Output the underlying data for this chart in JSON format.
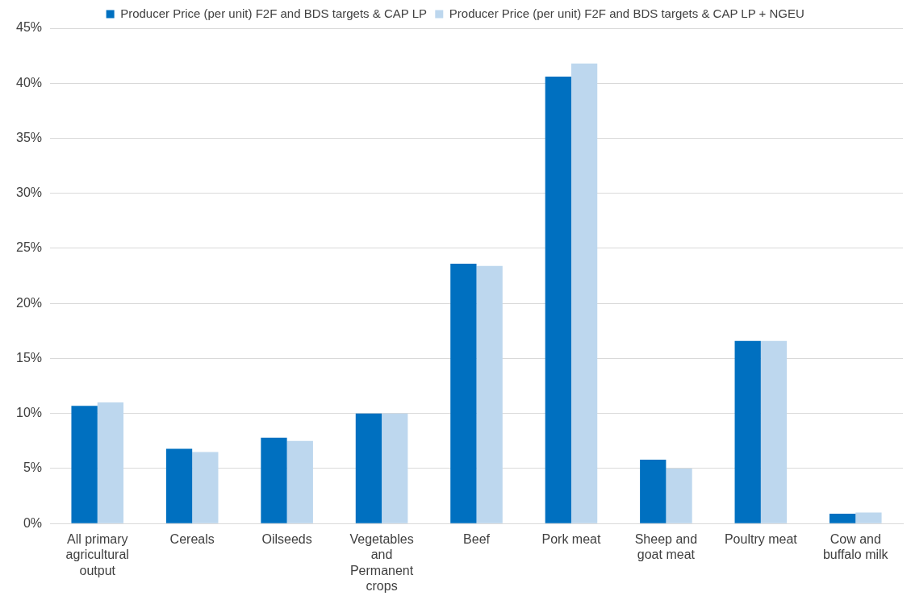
{
  "chart_data": {
    "type": "bar",
    "categories": [
      "All primary agricultural output",
      "Cereals",
      "Oilseeds",
      "Vegetables and Permanent crops",
      "Beef",
      "Pork meat",
      "Sheep and goat meat",
      "Poultry meat",
      "Cow and buffalo milk"
    ],
    "series": [
      {
        "name": "Producer Price (per unit) F2F and BDS targets & CAP LP",
        "color": "#0070c0",
        "values": [
          10.7,
          6.8,
          7.8,
          10.0,
          23.6,
          40.6,
          5.8,
          16.6,
          0.9
        ]
      },
      {
        "name": "Producer Price (per unit) F2F and BDS targets & CAP LP + NGEU",
        "color": "#bdd7ee",
        "values": [
          11.0,
          6.5,
          7.5,
          10.0,
          23.4,
          41.8,
          5.0,
          16.6,
          1.0
        ]
      }
    ],
    "ylim": [
      0,
      45
    ],
    "yticks": [
      {
        "value": 0,
        "label": "0%"
      },
      {
        "value": 5,
        "label": "5%"
      },
      {
        "value": 10,
        "label": "10%"
      },
      {
        "value": 15,
        "label": "15%"
      },
      {
        "value": 20,
        "label": "20%"
      },
      {
        "value": 25,
        "label": "25%"
      },
      {
        "value": 30,
        "label": "30%"
      },
      {
        "value": 35,
        "label": "35%"
      },
      {
        "value": 40,
        "label": "40%"
      },
      {
        "value": 45,
        "label": "45%"
      }
    ],
    "grid": "y",
    "legend": "top"
  }
}
